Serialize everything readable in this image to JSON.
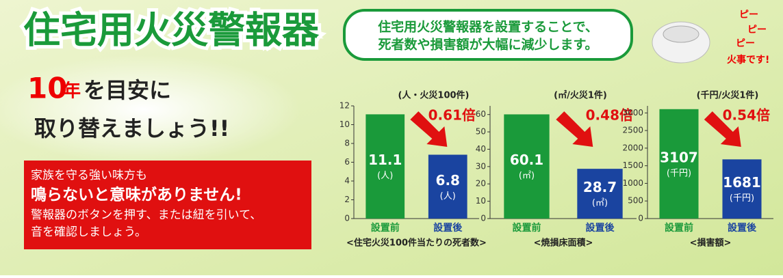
{
  "title": "住宅用火災警報器",
  "bubble": [
    "住宅用火災警報器を設置することで、",
    "死者数や損害額が大幅に減少します。"
  ],
  "sound": [
    "ピー",
    "ピー",
    "ピー",
    "火事です!"
  ],
  "headline": {
    "number": "10",
    "unit": "年",
    "rest": "を目安に",
    "line2": "取り替えましょう!!"
  },
  "notice": [
    "家族を守る強い味方も",
    "鳴らないと意味がありません!",
    "警報器のボタンを押す、または紐を引いて、",
    "音を確認しましょう。"
  ],
  "chart_data": [
    {
      "type": "bar",
      "unit_label": "(人・火災100件)",
      "ratio": "0.61倍",
      "categories": [
        "設置前",
        "設置後"
      ],
      "values": [
        11.1,
        6.8
      ],
      "bar_unit": "(人)",
      "colors": [
        "#1a9a3a",
        "#1a44a0"
      ],
      "ylim": [
        0,
        12
      ],
      "yticks": [
        0,
        2,
        4,
        6,
        8,
        10,
        12
      ],
      "caption": "<住宅火災100件当たりの死者数>"
    },
    {
      "type": "bar",
      "unit_label": "(㎡/火災1件)",
      "ratio": "0.48倍",
      "categories": [
        "設置前",
        "設置後"
      ],
      "values": [
        60.1,
        28.7
      ],
      "bar_unit": "(㎡)",
      "colors": [
        "#1a9a3a",
        "#1a44a0"
      ],
      "ylim": [
        0,
        65
      ],
      "yticks": [
        0,
        10,
        20,
        30,
        40,
        50,
        60
      ],
      "caption": "<焼損床面積>"
    },
    {
      "type": "bar",
      "unit_label": "(千円/火災1件)",
      "ratio": "0.54倍",
      "categories": [
        "設置前",
        "設置後"
      ],
      "values": [
        3107,
        1681
      ],
      "bar_unit": "(千円)",
      "colors": [
        "#1a9a3a",
        "#1a44a0"
      ],
      "ylim": [
        0,
        3200
      ],
      "yticks": [
        0,
        500,
        1000,
        1500,
        2000,
        2500,
        3000
      ],
      "caption": "<損害額>"
    }
  ]
}
